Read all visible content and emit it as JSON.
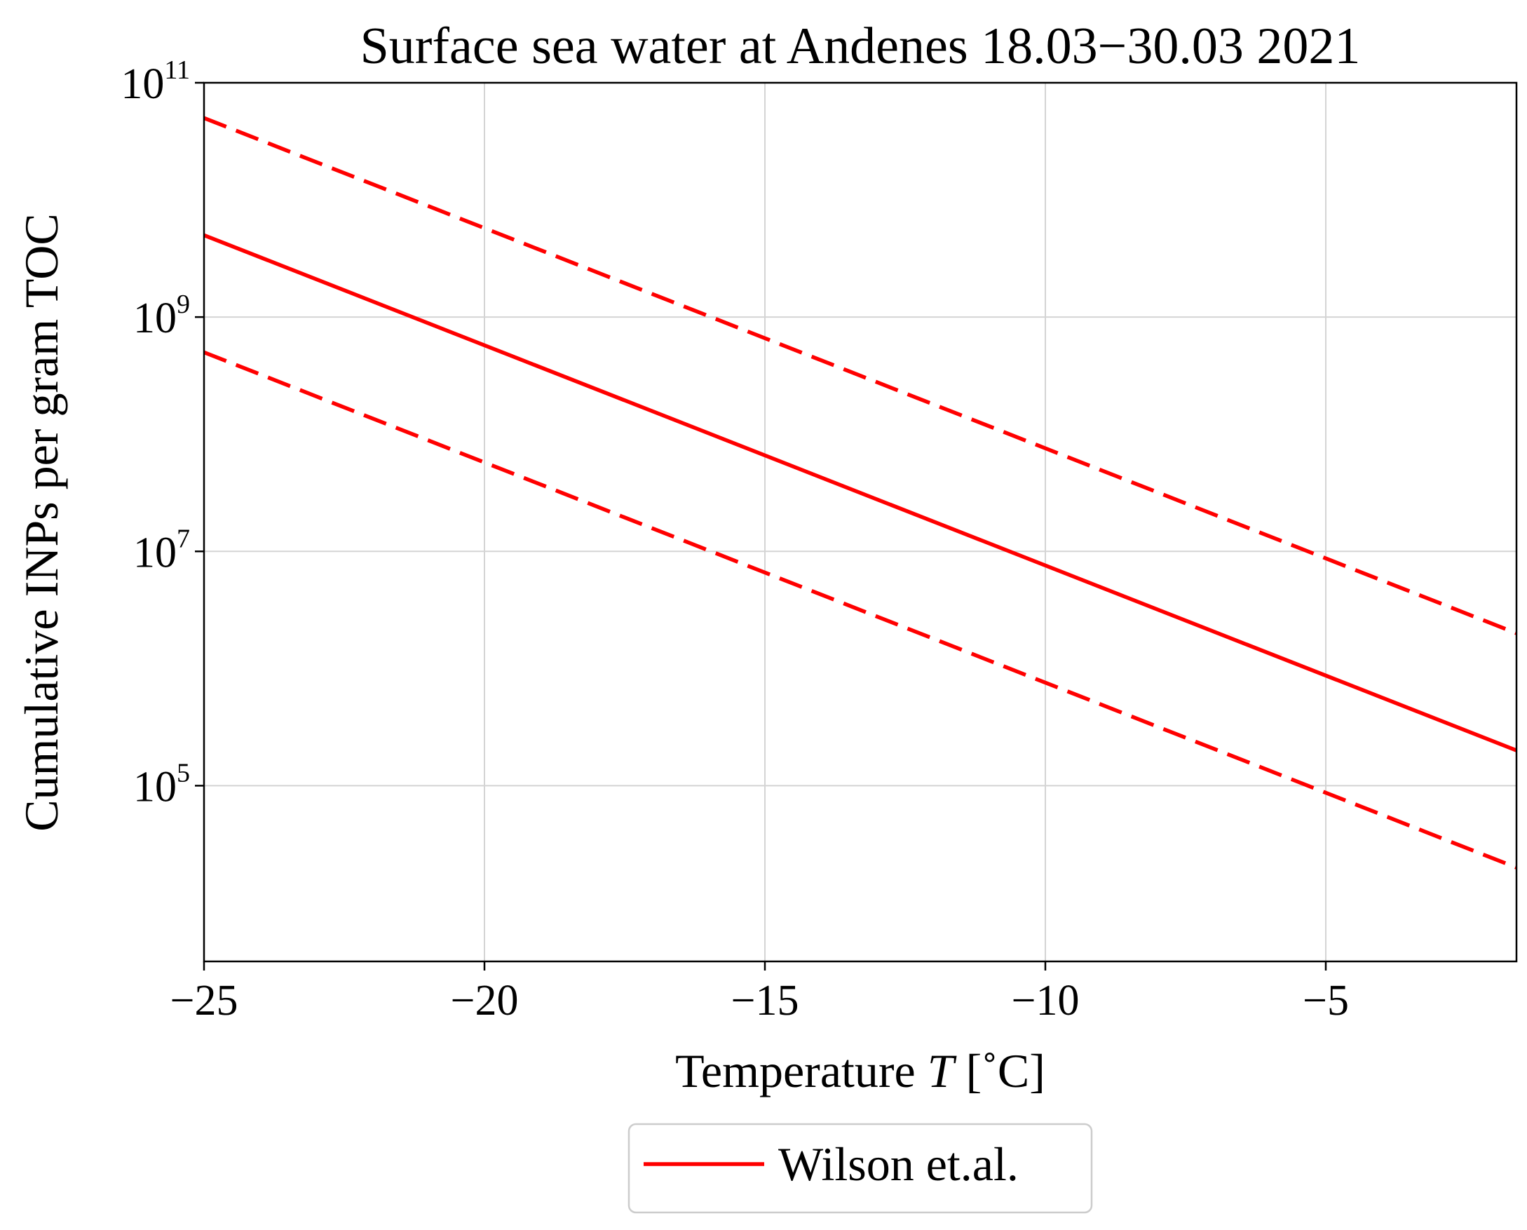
{
  "chart_data": {
    "type": "line",
    "title": "Surface sea water at Andenes 18.03−30.03 2021",
    "xlabel": {
      "prefix": "Temperature ",
      "italic": "T",
      "suffix": " [˚C]"
    },
    "ylabel": "Cumulative INPs per gram TOC",
    "x_scale": "linear",
    "y_scale": "log",
    "xlim": [
      -25,
      -1.6
    ],
    "ylim_log10": [
      3.5,
      11
    ],
    "x_ticks": [
      {
        "value": -25,
        "label": "−25"
      },
      {
        "value": -20,
        "label": "−20"
      },
      {
        "value": -15,
        "label": "−15"
      },
      {
        "value": -10,
        "label": "−10"
      },
      {
        "value": -5,
        "label": "−5"
      }
    ],
    "y_ticks": [
      {
        "log10": 11,
        "base": "10",
        "exp": "11"
      },
      {
        "log10": 9,
        "base": "10",
        "exp": "9"
      },
      {
        "log10": 7,
        "base": "10",
        "exp": "7"
      },
      {
        "log10": 5,
        "base": "10",
        "exp": "5"
      }
    ],
    "grid": true,
    "series": [
      {
        "name": "Wilson et.al.",
        "style": "solid",
        "color": "#ff0000",
        "x": [
          -25,
          -1.6
        ],
        "y": [
          5000000000.0,
          200000.0
        ]
      },
      {
        "style": "dashed",
        "color": "#ff0000",
        "x": [
          -25,
          -1.6
        ],
        "y": [
          50000000000.0,
          2000000.0
        ]
      },
      {
        "style": "dashed",
        "color": "#ff0000",
        "x": [
          -25,
          -1.6
        ],
        "y": [
          500000000.0,
          20000.0
        ]
      }
    ],
    "legend": {
      "position": "below",
      "entries": [
        "Wilson et.al."
      ]
    }
  }
}
